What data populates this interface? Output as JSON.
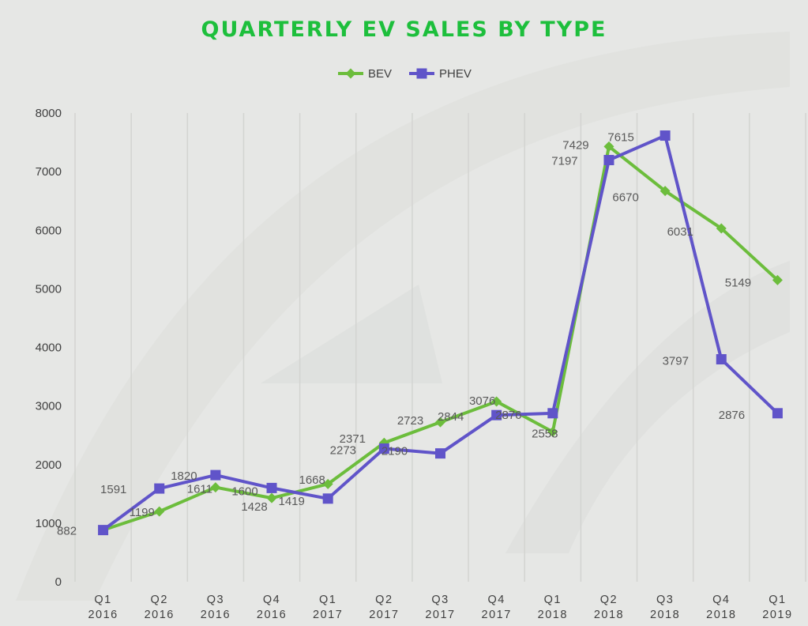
{
  "chart_data": {
    "type": "line",
    "title": "QUARTERLY EV SALES BY TYPE",
    "categories": [
      [
        "Q1",
        "2016"
      ],
      [
        "Q2",
        "2016"
      ],
      [
        "Q3",
        "2016"
      ],
      [
        "Q4",
        "2016"
      ],
      [
        "Q1",
        "2017"
      ],
      [
        "Q2",
        "2017"
      ],
      [
        "Q3",
        "2017"
      ],
      [
        "Q4",
        "2017"
      ],
      [
        "Q1",
        "2018"
      ],
      [
        "Q2",
        "2018"
      ],
      [
        "Q3",
        "2018"
      ],
      [
        "Q4",
        "2018"
      ],
      [
        "Q1",
        "2019"
      ]
    ],
    "series": [
      {
        "name": "BEV",
        "color": "#6cbd3c",
        "marker": "diamond",
        "values": [
          882,
          1199,
          1611,
          1428,
          1668,
          2371,
          2723,
          3076,
          2558,
          7429,
          6670,
          6031,
          5149
        ]
      },
      {
        "name": "PHEV",
        "color": "#6054c9",
        "marker": "square",
        "values": [
          882,
          1591,
          1820,
          1600,
          1419,
          2273,
          2190,
          2844,
          2876,
          7197,
          7615,
          3797,
          2876
        ]
      }
    ],
    "ylim": [
      0,
      8000
    ],
    "yticks": [
      0,
      1000,
      2000,
      3000,
      4000,
      5000,
      6000,
      7000,
      8000
    ],
    "grid": "vertical",
    "legend": "top-center",
    "title_color": "#1dbf3c",
    "xlabel": "",
    "ylabel": ""
  }
}
